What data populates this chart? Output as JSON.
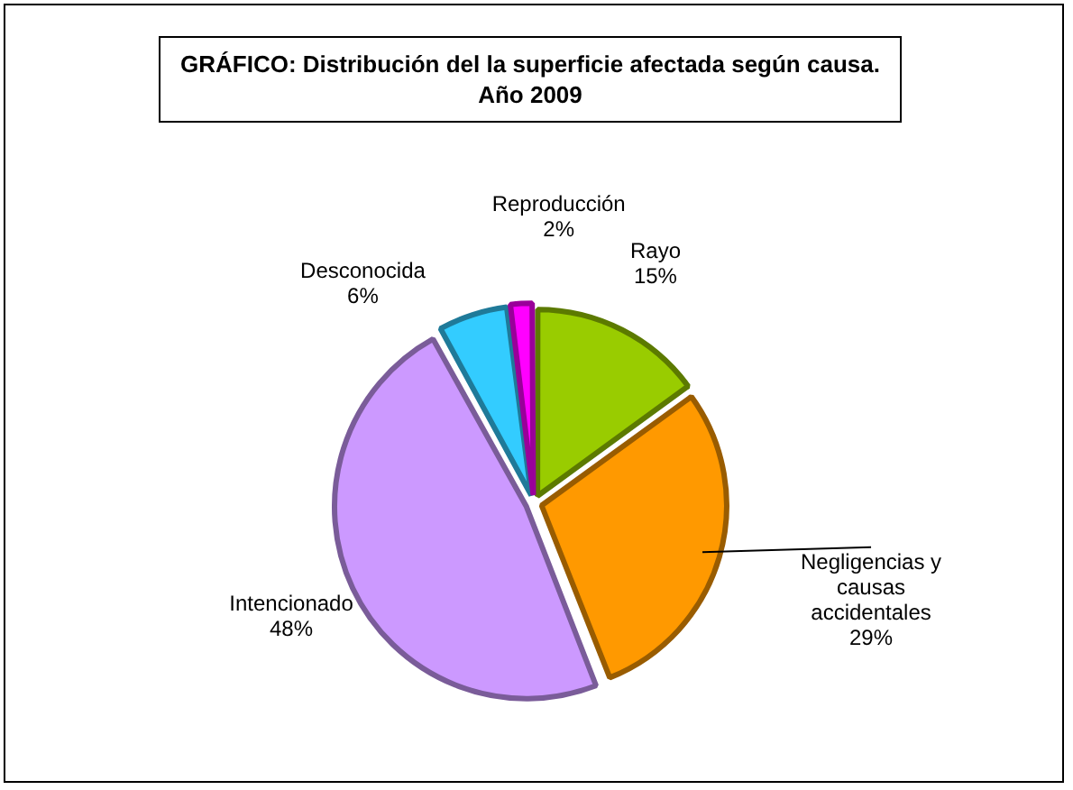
{
  "chart_data": {
    "type": "pie",
    "title": "GRÁFICO: Distribución del la superficie afectada según causa. Año 2009",
    "categories": [
      "Rayo",
      "Negligencias y causas accidentales",
      "Intencionado",
      "Desconocida",
      "Reproducción"
    ],
    "values": [
      15,
      29,
      48,
      6,
      2
    ],
    "value_labels": [
      "15%",
      "29%",
      "48%",
      "6%",
      "2%"
    ],
    "colors": [
      "#99cc00",
      "#ff9900",
      "#cc99ff",
      "#33ccff",
      "#ff00ff"
    ],
    "legend": false
  }
}
